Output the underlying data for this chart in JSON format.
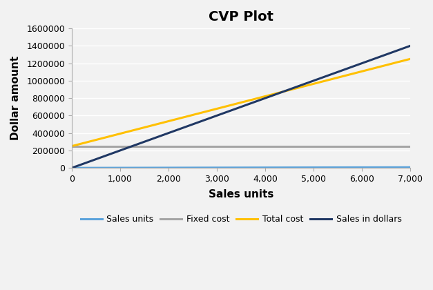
{
  "title": "CVP Plot",
  "xlabel": "Sales units",
  "ylabel": "Dollar amount",
  "xlim": [
    0,
    7000
  ],
  "ylim": [
    0,
    1600000
  ],
  "yticks": [
    0,
    200000,
    400000,
    600000,
    800000,
    1000000,
    1200000,
    1400000,
    1600000
  ],
  "xticks": [
    0,
    1000,
    2000,
    3000,
    4000,
    5000,
    6000,
    7000
  ],
  "fixed_cost": 250000,
  "variable_cost_per_unit": 142.857,
  "price_per_unit": 200,
  "max_units": 7000,
  "color_sales_units": "#5BA3DB",
  "color_fixed_cost": "#A5A5A5",
  "color_total_cost": "#FFC000",
  "color_sales_dollars": "#203864",
  "line_width": 2.2,
  "legend_labels": [
    "Sales units",
    "Fixed cost",
    "Total cost",
    "Sales in dollars"
  ],
  "background_color": "#F2F2F2",
  "plot_bg_color": "#F2F2F2",
  "grid_color": "#FFFFFF",
  "title_fontsize": 14,
  "label_fontsize": 11,
  "tick_fontsize": 9
}
